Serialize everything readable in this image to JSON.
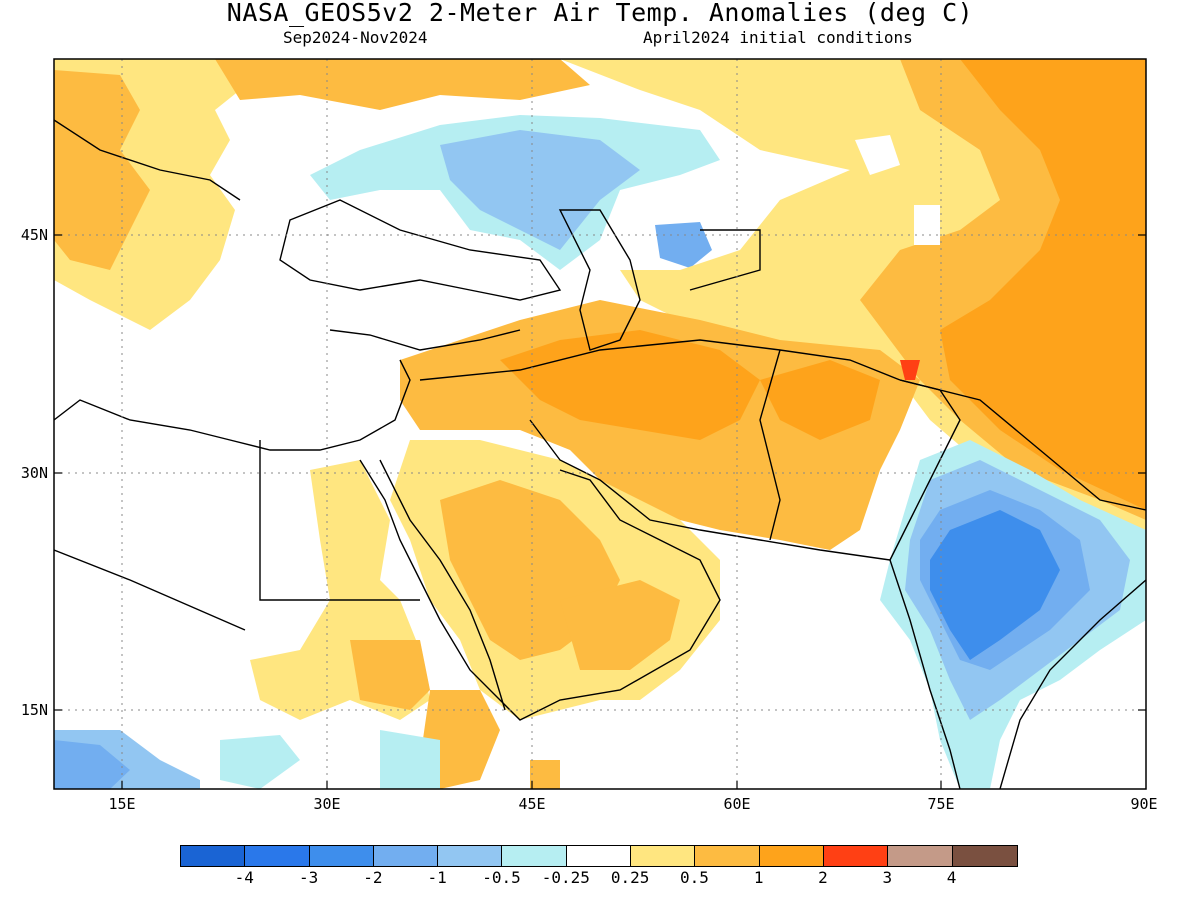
{
  "header": {
    "title": "NASA_GEOS5v2 2-Meter Air Temp. Anomalies (deg C)",
    "period": "Sep2024-Nov2024",
    "conditions": "April2024 initial conditions"
  },
  "map": {
    "lon_range": [
      10,
      90
    ],
    "lat_range": [
      10,
      56
    ],
    "lat_ticks": [
      {
        "value": 45,
        "label": "45N"
      },
      {
        "value": 30,
        "label": "30N"
      },
      {
        "value": 15,
        "label": "15N"
      }
    ],
    "lon_ticks": [
      {
        "value": 15,
        "label": "15E"
      },
      {
        "value": 30,
        "label": "30E"
      },
      {
        "value": 45,
        "label": "45E"
      },
      {
        "value": 60,
        "label": "60E"
      },
      {
        "value": 75,
        "label": "75E"
      },
      {
        "value": 90,
        "label": "90E"
      }
    ]
  },
  "legend": {
    "colors": [
      "#1a64d4",
      "#2a78ea",
      "#3e8eec",
      "#72aef0",
      "#92c6f2",
      "#b6eef2",
      "#ffffff",
      "#ffe680",
      "#fdbb41",
      "#fea31b",
      "#ff4014",
      "#c49a88",
      "#7a5040"
    ],
    "labels": [
      "-4",
      "-3",
      "-2",
      "-1",
      "-0.5",
      "-0.25",
      "0.25",
      "0.5",
      "1",
      "2",
      "3",
      "4"
    ]
  }
}
